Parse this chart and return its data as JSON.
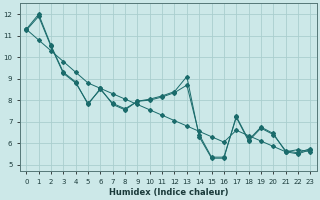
{
  "xlabel": "Humidex (Indice chaleur)",
  "background_color": "#cce8e8",
  "grid_color": "#aacece",
  "line_color": "#1a6b6b",
  "xlim": [
    -0.5,
    23.5
  ],
  "ylim": [
    4.7,
    12.5
  ],
  "yticks": [
    5,
    6,
    7,
    8,
    9,
    10,
    11,
    12
  ],
  "xticks": [
    0,
    1,
    2,
    3,
    4,
    5,
    6,
    7,
    8,
    9,
    10,
    11,
    12,
    13,
    14,
    15,
    16,
    17,
    18,
    19,
    20,
    21,
    22,
    23
  ],
  "line1_x": [
    0,
    1,
    2,
    3,
    4,
    5,
    6,
    7,
    8,
    9,
    10,
    11,
    12,
    13,
    14,
    15,
    16,
    17,
    18,
    19,
    20,
    21,
    22,
    23
  ],
  "line1_y": [
    11.3,
    12.0,
    10.55,
    9.3,
    8.85,
    7.8,
    8.55,
    7.8,
    7.55,
    7.95,
    8.05,
    8.2,
    8.4,
    9.1,
    6.3,
    5.3,
    5.3,
    7.25,
    6.15,
    6.75,
    6.45,
    5.6,
    5.5,
    5.7
  ],
  "line2_x": [
    0,
    1,
    2,
    3,
    4,
    5,
    6,
    7,
    8,
    9,
    10,
    11,
    12,
    13,
    14,
    15,
    16,
    17,
    18,
    19,
    20,
    21,
    22,
    23
  ],
  "line2_y": [
    11.3,
    10.8,
    10.3,
    9.8,
    9.3,
    8.8,
    8.55,
    8.3,
    8.05,
    7.8,
    7.55,
    7.3,
    7.05,
    6.8,
    6.55,
    6.3,
    6.05,
    6.6,
    6.35,
    6.1,
    5.85,
    5.6,
    5.7,
    5.6
  ],
  "line3_x": [
    0,
    1,
    2,
    3,
    4,
    5,
    6,
    7,
    8,
    9,
    10,
    11,
    12,
    13,
    14,
    15,
    16,
    17,
    18,
    19,
    20,
    21,
    22,
    23
  ],
  "line3_y": [
    11.25,
    11.9,
    10.5,
    9.25,
    8.8,
    7.85,
    8.5,
    7.85,
    7.6,
    7.95,
    8.0,
    8.15,
    8.35,
    8.7,
    6.4,
    5.35,
    5.35,
    7.2,
    6.1,
    6.7,
    6.4,
    5.65,
    5.55,
    5.75
  ]
}
